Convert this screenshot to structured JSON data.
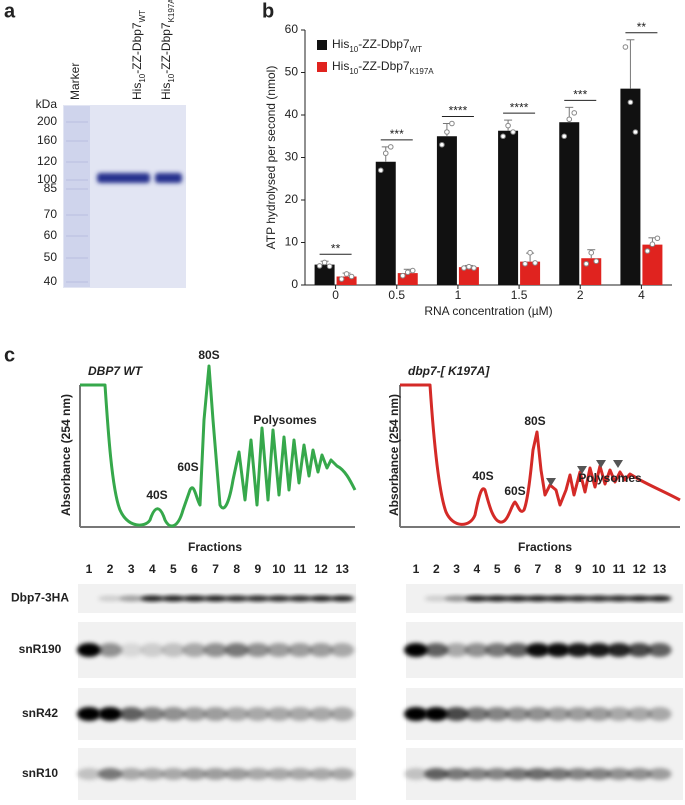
{
  "panel_labels": [
    "a",
    "b",
    "c"
  ],
  "gel": {
    "unit": "kDa",
    "ladder": [
      200,
      160,
      120,
      100,
      85,
      70,
      60,
      50,
      40
    ],
    "lanes": [
      [
        "Marker"
      ],
      [
        "His",
        "10",
        "-ZZ-Dbp7",
        "WT"
      ],
      [
        "His",
        "10",
        "-ZZ-Dbp7",
        "K197A"
      ]
    ]
  },
  "chart_data": {
    "type": "bar",
    "y_label": "ATP hydrolysed per second (nmol)",
    "x_label": "RNA concentration (µM)",
    "categories": [
      "0",
      "0.5",
      "1",
      "1.5",
      "2",
      "4"
    ],
    "series": [
      {
        "name_parts": [
          "His",
          "10",
          "-ZZ-Dbp7",
          "WT"
        ],
        "color": "#111111",
        "values": [
          4.8,
          29,
          35,
          36.3,
          38.3,
          46.2
        ],
        "errors": [
          0.8,
          3.5,
          3,
          2.5,
          3.5,
          11.5
        ],
        "points": [
          [
            4.5,
            5.3,
            4.4
          ],
          [
            27,
            31,
            32.5
          ],
          [
            33,
            36,
            38
          ],
          [
            35,
            37.5,
            36
          ],
          [
            35,
            39,
            40.5
          ],
          [
            56,
            43,
            36
          ]
        ]
      },
      {
        "name_parts": [
          "His",
          "10",
          "-ZZ-Dbp7",
          "K197A"
        ],
        "color": "#e0231f",
        "values": [
          2,
          2.8,
          4.2,
          5.5,
          6.3,
          9.5
        ],
        "errors": [
          0.8,
          0.9,
          0.4,
          2,
          2,
          1.6
        ],
        "points": [
          [
            1.4,
            2.6,
            2
          ],
          [
            2.2,
            3,
            3.4
          ],
          [
            4,
            4.3,
            4
          ],
          [
            5,
            7.6,
            5.2
          ],
          [
            5,
            7.6,
            5.6
          ],
          [
            8,
            9.6,
            11
          ]
        ]
      }
    ],
    "annotations": [
      "**",
      "***",
      "****",
      "****",
      "***",
      "**"
    ],
    "ylim": [
      0,
      60
    ],
    "yticks": [
      0,
      10,
      20,
      30,
      40,
      50,
      60
    ],
    "legend": "upper-left"
  },
  "profiles": [
    {
      "title": "DBP7 WT",
      "color": "#36a84b",
      "y_label": "Absorbance (254 nm)",
      "x_label": "Fractions",
      "peaks": [
        "40S",
        "60S",
        "80S"
      ],
      "polysomes": "Polysomes"
    },
    {
      "title": "dbp7-[ K197A]",
      "color": "#d42a27",
      "y_label": "Absorbance (254 nm)",
      "x_label": "Fractions",
      "peaks": [
        "40S",
        "60S",
        "80S"
      ],
      "polysomes": "Polysomes"
    }
  ],
  "blots": {
    "fractions": [
      1,
      2,
      3,
      4,
      5,
      6,
      7,
      8,
      9,
      10,
      11,
      12,
      13
    ],
    "rows": [
      "Dbp7-3HA",
      "snR190",
      "snR42",
      "snR10"
    ]
  }
}
